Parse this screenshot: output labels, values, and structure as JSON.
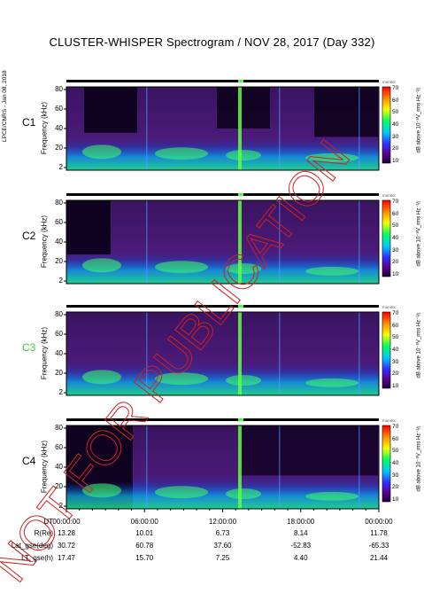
{
  "chart_data": {
    "type": "heatmap",
    "title": "CLUSTER-WHISPER Spectrogram / NOV 28, 2017 (Day 332)",
    "side_stamp": "LPCE/CNRS - Jan 08, 2018",
    "ylabel": "Frequency (kHz)",
    "yticks": [
      "80",
      "60",
      "40",
      "20",
      "2"
    ],
    "ylim": [
      2,
      80
    ],
    "colorbar": {
      "header": "monitor",
      "ticks": [
        "70",
        "60",
        "50",
        "40",
        "30",
        "20",
        "10"
      ],
      "range": [
        10,
        70
      ],
      "label": "dB above 10⁻⁸V_rms Hz⁻½"
    },
    "panels": [
      {
        "name": "C1",
        "label_color": "#000000"
      },
      {
        "name": "C2",
        "label_color": "#000000"
      },
      {
        "name": "C3",
        "label_color": "#33cc33"
      },
      {
        "name": "C4",
        "label_color": "#000000"
      }
    ],
    "ephemeris": {
      "labels": [
        "UT",
        "R(Re)",
        "Lat_gse(deg)",
        "LT_gse(h)"
      ],
      "columns": [
        [
          "00:00:00",
          "13.28",
          "30.72",
          "17.47"
        ],
        [
          "06:00:00",
          "10.01",
          "60.78",
          "15.70"
        ],
        [
          "12:00:00",
          "6.73",
          "37.60",
          "7.25"
        ],
        [
          "18:00:00",
          "8.14",
          "-52.83",
          "4.40"
        ],
        [
          "00:00:00",
          "11.78",
          "-65.33",
          "21.44"
        ]
      ]
    },
    "watermark": "NOT FOR PUBLICATION"
  }
}
